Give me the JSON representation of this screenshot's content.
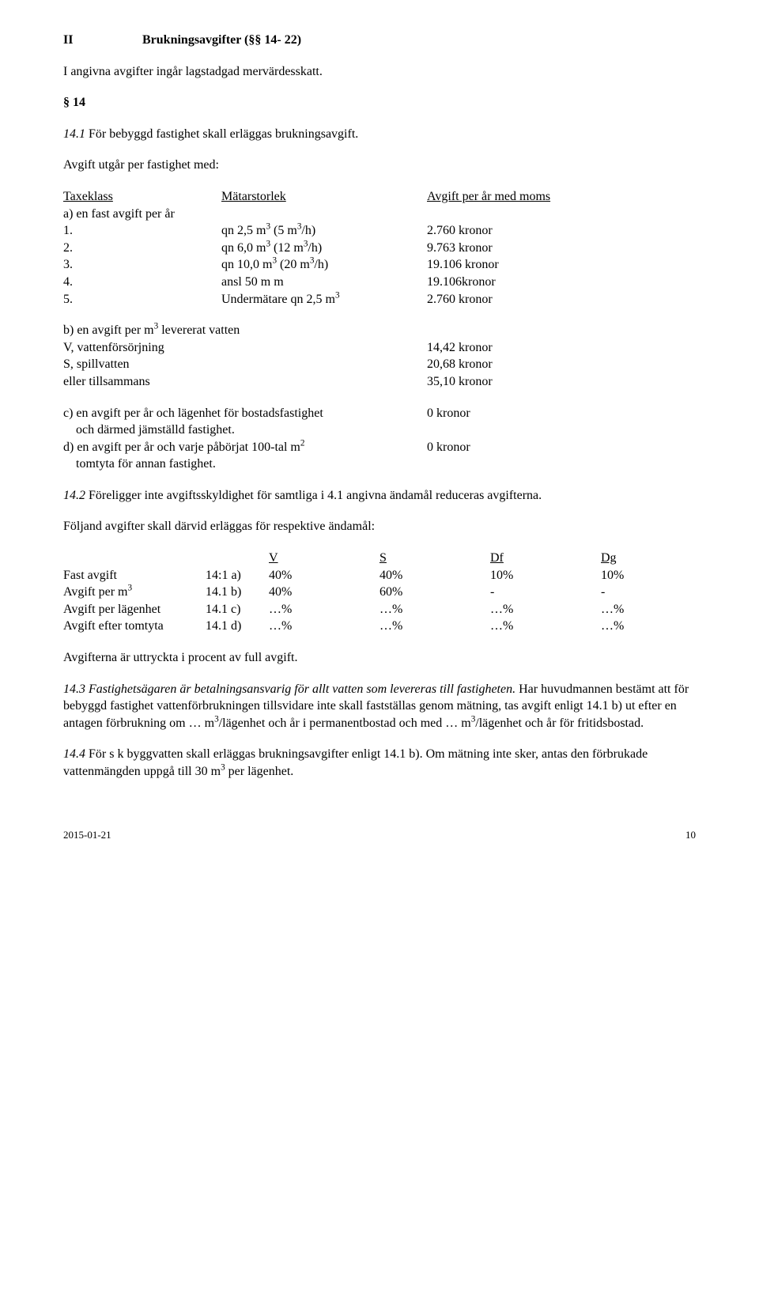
{
  "heading": {
    "num": "II",
    "title": "Brukningsavgifter (§§ 14- 22)"
  },
  "intro": "I angivna avgifter ingår lagstadgad mervärdesskatt.",
  "section_num": "§ 14",
  "p14_1_italic": "14.1",
  "p14_1_rest": " För bebyggd fastighet skall erläggas brukningsavgift.",
  "p_avgift_med": "Avgift utgår per fastighet med:",
  "taxheader": {
    "c1": "Taxeklass",
    "c2": "Mätarstorlek",
    "c3": "Avgift per år med moms"
  },
  "rowA": "a) en fast avgift per år",
  "taxrows": [
    {
      "c1": "1.",
      "c2": "qn  2,5 m³ (5 m³/h)",
      "c3": "2.760 kronor"
    },
    {
      "c1": "2.",
      "c2": "qn  6,0 m³ (12 m³/h)",
      "c3": "9.763 kronor"
    },
    {
      "c1": "3.",
      "c2": "qn 10,0 m³ (20 m³/h)",
      "c3": "19.106 kronor"
    },
    {
      "c1": "4.",
      "c2": "ansl 50 m m",
      "c3": "19.106kronor"
    },
    {
      "c1": "5.",
      "c2": "Undermätare qn 2,5 m³",
      "c3": "2.760 kronor"
    }
  ],
  "rowB_lead": "b) en avgift per m³ levererat vatten",
  "rowB": [
    {
      "c1": "V, vattenförsörjning",
      "c2": "14,42 kronor"
    },
    {
      "c1": "S, spillvatten",
      "c2": "20,68 kronor"
    },
    {
      "c1": "eller tillsammans",
      "c2": "35,10 kronor"
    }
  ],
  "rowC": {
    "l1": "c) en avgift per år och lägenhet för bostadsfastighet",
    "l1v": "0 kronor",
    "l2": "    och därmed jämställd fastighet."
  },
  "rowD": {
    "l1": "d) en avgift per år och varje påbörjat 100-tal m²",
    "l1v": "0 kronor",
    "l2": "    tomtyta för annan fastighet."
  },
  "p14_2_italic": "14.2",
  "p14_2_rest": " Föreligger inte avgiftsskyldighet för samtliga i 4.1 angivna ändamål reduceras avgifterna.",
  "p_foljand": "Följand avgifter skall därvid erläggas för respektive ändamål:",
  "t3header": {
    "c0": "",
    "c1": "",
    "c2": "V",
    "c3": "S",
    "c4": "Df",
    "c5": "Dg"
  },
  "t3rows": [
    {
      "c0": "Fast avgift",
      "c1": "14:1 a)",
      "c2": "40%",
      "c3": "40%",
      "c4": "10%",
      "c5": "10%"
    },
    {
      "c0": "Avgift per m³",
      "c1": "14.1 b)",
      "c2": "40%",
      "c3": "60%",
      "c4": "-",
      "c5": "-"
    },
    {
      "c0": "Avgift per lägenhet",
      "c1": "14.1 c)",
      "c2": "…%",
      "c3": "…%",
      "c4": "…%",
      "c5": "…%"
    },
    {
      "c0": "Avgift efter tomtyta",
      "c1": "14.1 d)",
      "c2": "…%",
      "c3": "…%",
      "c4": "…%",
      "c5": "…%"
    }
  ],
  "p_procent": "Avgifterna är uttryckta i procent av full avgift.",
  "p14_3_italic": "14.3 Fastighetsägaren är betalningsansvarig för allt vatten som levereras till fastigheten.",
  "p14_3_rest": " Har huvudmannen bestämt att för bebyggd fastighet vattenförbrukningen tillsvidare inte skall fastställas genom mätning, tas avgift enligt 14.1 b) ut efter en antagen förbrukning om … m³/lägenhet och år i permanentbostad och med … m³/lägenhet och år för fritidsbostad.",
  "p14_4_italic": "14.4",
  "p14_4_rest": " För s k byggvatten skall erläggas brukningsavgifter enligt 14.1 b). Om mätning inte sker, antas den förbrukade vattenmängden uppgå till 30 m³ per lägenhet.",
  "footer": {
    "date": "2015-01-21",
    "page": "10"
  }
}
